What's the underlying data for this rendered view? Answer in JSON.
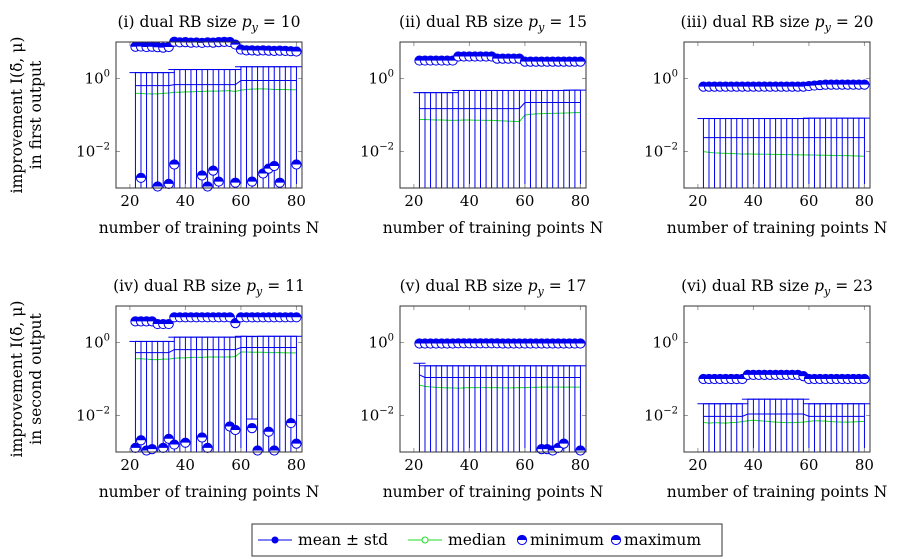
{
  "colors": {
    "mean": "#0000ee",
    "median": "#22dd22",
    "marker": "#0000ee",
    "axis": "#333333"
  },
  "legend": {
    "mean": "mean ± std",
    "median": "median",
    "minimum": "minimum",
    "maximum": "maximum",
    "placement": "bottom-center"
  },
  "ylabel_rows": [
    {
      "line1": "improvement I(δ̃, μ)",
      "line2": "in first output"
    },
    {
      "line1": "improvement I(δ̃, μ)",
      "line2": "in second output"
    }
  ],
  "chart_data": [
    {
      "type": "line",
      "title_prefix": "(i) dual RB size",
      "title_var": "p",
      "title_sub": "y",
      "title_value": "= 10",
      "xlabel": "number of training points N",
      "xlim": [
        15,
        82
      ],
      "ylim": [
        0.001,
        10
      ],
      "yscale": "log",
      "xticks": [
        20,
        40,
        60,
        80
      ],
      "yticks": [
        {
          "value": 1,
          "base": "10",
          "exp": "0"
        },
        {
          "value": 0.01,
          "base": "10",
          "exp": "−2"
        }
      ],
      "x": [
        22,
        24,
        26,
        28,
        30,
        32,
        34,
        36,
        38,
        40,
        42,
        44,
        46,
        48,
        50,
        52,
        54,
        56,
        58,
        60,
        62,
        64,
        66,
        68,
        70,
        72,
        74,
        76,
        78,
        80
      ],
      "mean": [
        0.64,
        0.64,
        0.64,
        0.64,
        0.64,
        0.64,
        0.64,
        0.68,
        0.68,
        0.68,
        0.68,
        0.68,
        0.68,
        0.68,
        0.68,
        0.68,
        0.68,
        0.68,
        0.68,
        0.88,
        0.88,
        0.88,
        0.88,
        0.88,
        0.88,
        0.88,
        0.88,
        0.88,
        0.88,
        0.88
      ],
      "std": [
        0.81,
        0.81,
        0.81,
        0.81,
        0.81,
        0.81,
        0.81,
        1.08,
        1.08,
        1.08,
        1.08,
        1.08,
        1.08,
        1.08,
        1.08,
        1.08,
        1.08,
        1.08,
        1.08,
        1.22,
        1.22,
        1.22,
        1.22,
        1.22,
        1.22,
        1.22,
        1.22,
        1.22,
        1.22,
        1.22
      ],
      "median": [
        0.39,
        0.39,
        0.38,
        0.38,
        0.38,
        0.39,
        0.4,
        0.42,
        0.42,
        0.43,
        0.43,
        0.44,
        0.44,
        0.45,
        0.45,
        0.45,
        0.46,
        0.46,
        0.44,
        0.48,
        0.5,
        0.51,
        0.52,
        0.52,
        0.51,
        0.5,
        0.5,
        0.5,
        0.49,
        0.49
      ],
      "maximum": [
        7.4,
        7.5,
        7.3,
        7.4,
        7.2,
        7.0,
        7.3,
        10.2,
        9.8,
        9.9,
        9.6,
        9.7,
        9.5,
        9.8,
        9.6,
        9.9,
        10.1,
        10.0,
        8.5,
        6.2,
        5.9,
        5.9,
        5.8,
        5.9,
        5.8,
        5.7,
        5.8,
        5.7,
        5.6,
        5.5
      ],
      "minimum": [
        null,
        0.0019,
        null,
        null,
        0.0011,
        null,
        0.0013,
        0.0044,
        null,
        null,
        null,
        null,
        0.0022,
        0.0011,
        0.003,
        0.0015,
        null,
        null,
        0.0014,
        null,
        null,
        0.0015,
        null,
        0.0025,
        0.0034,
        0.004,
        0.0014,
        null,
        null,
        0.0044
      ]
    },
    {
      "type": "line",
      "title_prefix": "(ii) dual RB size",
      "title_var": "p",
      "title_sub": "y",
      "title_value": "= 15",
      "xlabel": "number of training points N",
      "xlim": [
        15,
        82
      ],
      "ylim": [
        0.001,
        10
      ],
      "yscale": "log",
      "xticks": [
        20,
        40,
        60,
        80
      ],
      "yticks": [
        {
          "value": 1,
          "base": "10",
          "exp": "0"
        },
        {
          "value": 0.01,
          "base": "10",
          "exp": "−2"
        }
      ],
      "x": [
        22,
        24,
        26,
        28,
        30,
        32,
        34,
        36,
        38,
        40,
        42,
        44,
        46,
        48,
        50,
        52,
        54,
        56,
        58,
        60,
        62,
        64,
        66,
        68,
        70,
        72,
        74,
        76,
        78,
        80
      ],
      "mean": [
        0.15,
        0.15,
        0.15,
        0.15,
        0.15,
        0.15,
        0.15,
        0.15,
        0.15,
        0.15,
        0.15,
        0.15,
        0.15,
        0.15,
        0.15,
        0.15,
        0.15,
        0.15,
        0.15,
        0.22,
        0.22,
        0.22,
        0.22,
        0.22,
        0.22,
        0.22,
        0.22,
        0.22,
        0.22,
        0.22
      ],
      "std": [
        0.26,
        0.26,
        0.26,
        0.26,
        0.26,
        0.26,
        0.26,
        0.32,
        0.32,
        0.32,
        0.32,
        0.32,
        0.32,
        0.32,
        0.32,
        0.32,
        0.32,
        0.32,
        0.32,
        0.25,
        0.25,
        0.25,
        0.25,
        0.25,
        0.25,
        0.25,
        0.25,
        0.26,
        0.26,
        0.26
      ],
      "median": [
        0.075,
        0.075,
        0.074,
        0.073,
        0.073,
        0.072,
        0.071,
        0.072,
        0.073,
        0.073,
        0.072,
        0.072,
        0.071,
        0.071,
        0.07,
        0.069,
        0.068,
        0.067,
        0.066,
        0.1,
        0.104,
        0.107,
        0.109,
        0.11,
        0.111,
        0.112,
        0.113,
        0.114,
        0.116,
        0.117
      ],
      "maximum": [
        3.1,
        3.1,
        3.1,
        3.1,
        3.1,
        3.1,
        3.1,
        4.0,
        4.0,
        4.0,
        4.0,
        4.0,
        4.0,
        4.0,
        3.5,
        3.5,
        3.5,
        3.5,
        3.5,
        2.9,
        2.9,
        2.9,
        2.9,
        2.9,
        2.9,
        2.9,
        2.9,
        2.9,
        2.9,
        2.9
      ],
      "minimum": []
    },
    {
      "type": "line",
      "title_prefix": "(iii) dual RB size",
      "title_var": "p",
      "title_sub": "y",
      "title_value": "= 20",
      "xlabel": "number of training points N",
      "xlim": [
        15,
        82
      ],
      "ylim": [
        0.001,
        10
      ],
      "yscale": "log",
      "xticks": [
        20,
        40,
        60,
        80
      ],
      "yticks": [
        {
          "value": 1,
          "base": "10",
          "exp": "0"
        },
        {
          "value": 0.01,
          "base": "10",
          "exp": "−2"
        }
      ],
      "x": [
        22,
        24,
        26,
        28,
        30,
        32,
        34,
        36,
        38,
        40,
        42,
        44,
        46,
        48,
        50,
        52,
        54,
        56,
        58,
        60,
        62,
        64,
        66,
        68,
        70,
        72,
        74,
        76,
        78,
        80
      ],
      "mean": [
        0.024,
        0.024,
        0.024,
        0.024,
        0.024,
        0.024,
        0.024,
        0.024,
        0.024,
        0.024,
        0.024,
        0.024,
        0.024,
        0.024,
        0.024,
        0.024,
        0.024,
        0.024,
        0.024,
        0.024,
        0.024,
        0.024,
        0.024,
        0.024,
        0.024,
        0.024,
        0.024,
        0.024,
        0.024,
        0.024
      ],
      "std": [
        0.056,
        0.056,
        0.056,
        0.056,
        0.056,
        0.056,
        0.056,
        0.056,
        0.056,
        0.056,
        0.056,
        0.056,
        0.056,
        0.056,
        0.056,
        0.056,
        0.056,
        0.056,
        0.056,
        0.058,
        0.058,
        0.058,
        0.058,
        0.058,
        0.058,
        0.058,
        0.058,
        0.058,
        0.058,
        0.058
      ],
      "median": [
        0.0099,
        0.0095,
        0.0092,
        0.009,
        0.0089,
        0.0088,
        0.0087,
        0.0085,
        0.0086,
        0.0085,
        0.0085,
        0.0084,
        0.0084,
        0.0083,
        0.0083,
        0.0082,
        0.0082,
        0.0081,
        0.0081,
        0.008,
        0.008,
        0.0079,
        0.0079,
        0.0078,
        0.0078,
        0.0077,
        0.0077,
        0.0076,
        0.0075,
        0.0074
      ],
      "maximum": [
        0.6,
        0.6,
        0.6,
        0.6,
        0.6,
        0.6,
        0.6,
        0.6,
        0.6,
        0.6,
        0.6,
        0.6,
        0.6,
        0.6,
        0.6,
        0.6,
        0.6,
        0.6,
        0.6,
        0.62,
        0.64,
        0.66,
        0.68,
        0.68,
        0.68,
        0.68,
        0.68,
        0.68,
        0.68,
        0.68
      ],
      "minimum": []
    },
    {
      "type": "line",
      "title_prefix": "(iv) dual RB size",
      "title_var": "p",
      "title_sub": "y",
      "title_value": "= 11",
      "xlabel": "number of training points N",
      "xlim": [
        15,
        82
      ],
      "ylim": [
        0.001,
        10
      ],
      "yscale": "log",
      "xticks": [
        20,
        40,
        60,
        80
      ],
      "yticks": [
        {
          "value": 1,
          "base": "10",
          "exp": "0"
        },
        {
          "value": 0.01,
          "base": "10",
          "exp": "−2"
        }
      ],
      "x": [
        22,
        24,
        26,
        28,
        30,
        32,
        34,
        36,
        38,
        40,
        42,
        44,
        46,
        48,
        50,
        52,
        54,
        56,
        58,
        60,
        62,
        64,
        66,
        68,
        70,
        72,
        74,
        76,
        78,
        80
      ],
      "mean": [
        0.53,
        0.53,
        0.53,
        0.53,
        0.53,
        0.53,
        0.53,
        0.64,
        0.64,
        0.64,
        0.64,
        0.64,
        0.64,
        0.64,
        0.64,
        0.64,
        0.64,
        0.64,
        0.64,
        0.73,
        0.73,
        0.73,
        0.73,
        0.73,
        0.73,
        0.73,
        0.73,
        0.73,
        0.73,
        0.73
      ],
      "std": [
        0.54,
        0.54,
        0.54,
        0.54,
        0.54,
        0.54,
        0.54,
        0.76,
        0.76,
        0.76,
        0.76,
        0.76,
        0.76,
        0.76,
        0.76,
        0.76,
        0.76,
        0.76,
        0.76,
        0.75,
        0.75,
        0.722,
        0.75,
        0.75,
        0.75,
        0.75,
        0.75,
        0.75,
        0.75,
        0.75
      ],
      "median": [
        0.36,
        0.36,
        0.35,
        0.34,
        0.34,
        0.35,
        0.35,
        0.37,
        0.38,
        0.38,
        0.39,
        0.39,
        0.39,
        0.4,
        0.4,
        0.4,
        0.4,
        0.4,
        0.41,
        0.55,
        0.55,
        0.54,
        0.54,
        0.54,
        0.53,
        0.53,
        0.53,
        0.52,
        0.52,
        0.52
      ],
      "maximum": [
        3.8,
        3.8,
        3.8,
        3.8,
        3.2,
        3.2,
        3.2,
        4.9,
        4.9,
        4.9,
        4.9,
        4.9,
        4.9,
        4.9,
        4.9,
        4.9,
        4.9,
        4.9,
        3.4,
        4.9,
        4.9,
        4.9,
        4.9,
        4.9,
        4.9,
        4.9,
        4.9,
        4.9,
        4.9,
        4.9
      ],
      "minimum": [
        0.0013,
        0.0021,
        0.0011,
        0.0012,
        null,
        0.0013,
        0.0023,
        0.0016,
        null,
        0.0018,
        null,
        null,
        0.0025,
        0.0013,
        null,
        null,
        null,
        0.005,
        0.004,
        null,
        null,
        0.0045,
        0.0011,
        null,
        0.0036,
        0.0011,
        null,
        null,
        0.0062,
        0.0017
      ]
    },
    {
      "type": "line",
      "title_prefix": "(v) dual RB size",
      "title_var": "p",
      "title_sub": "y",
      "title_value": "= 17",
      "xlabel": "number of training points N",
      "xlim": [
        15,
        82
      ],
      "ylim": [
        0.001,
        10
      ],
      "yscale": "log",
      "xticks": [
        20,
        40,
        60,
        80
      ],
      "yticks": [
        {
          "value": 1,
          "base": "10",
          "exp": "0"
        },
        {
          "value": 0.01,
          "base": "10",
          "exp": "−2"
        }
      ],
      "x": [
        22,
        24,
        26,
        28,
        30,
        32,
        34,
        36,
        38,
        40,
        42,
        44,
        46,
        48,
        50,
        52,
        54,
        56,
        58,
        60,
        62,
        64,
        66,
        68,
        70,
        72,
        74,
        76,
        78,
        80
      ],
      "mean": [
        0.13,
        0.11,
        0.11,
        0.11,
        0.11,
        0.11,
        0.11,
        0.11,
        0.11,
        0.11,
        0.11,
        0.11,
        0.11,
        0.11,
        0.11,
        0.11,
        0.11,
        0.11,
        0.11,
        0.11,
        0.11,
        0.11,
        0.11,
        0.11,
        0.11,
        0.11,
        0.11,
        0.11,
        0.11,
        0.11
      ],
      "std": [
        0.14,
        0.12,
        0.12,
        0.12,
        0.12,
        0.12,
        0.12,
        0.12,
        0.12,
        0.12,
        0.12,
        0.12,
        0.12,
        0.12,
        0.12,
        0.12,
        0.12,
        0.12,
        0.12,
        0.12,
        0.12,
        0.12,
        0.12,
        0.12,
        0.12,
        0.12,
        0.12,
        0.12,
        0.12,
        0.12
      ],
      "median": [
        0.068,
        0.063,
        0.061,
        0.059,
        0.058,
        0.057,
        0.057,
        0.056,
        0.057,
        0.058,
        0.058,
        0.058,
        0.058,
        0.058,
        0.058,
        0.057,
        0.057,
        0.057,
        0.058,
        0.058,
        0.059,
        0.059,
        0.06,
        0.06,
        0.06,
        0.06,
        0.06,
        0.06,
        0.06,
        0.06
      ],
      "maximum": [
        0.94,
        0.94,
        0.94,
        0.94,
        0.94,
        0.94,
        0.94,
        0.95,
        0.95,
        0.95,
        0.95,
        0.95,
        0.95,
        0.95,
        0.95,
        0.94,
        0.94,
        0.94,
        0.94,
        0.94,
        0.94,
        0.94,
        0.94,
        0.94,
        0.94,
        0.94,
        0.94,
        0.94,
        0.94,
        0.94
      ],
      "minimum": [
        null,
        null,
        null,
        null,
        null,
        null,
        null,
        null,
        null,
        null,
        null,
        null,
        null,
        null,
        null,
        null,
        null,
        null,
        null,
        null,
        null,
        null,
        0.0012,
        0.0012,
        0.0011,
        0.0013,
        0.0017,
        null,
        null,
        0.0011
      ]
    },
    {
      "type": "line",
      "title_prefix": "(vi) dual RB size",
      "title_var": "p",
      "title_sub": "y",
      "title_value": "= 23",
      "xlabel": "number of training points N",
      "xlim": [
        15,
        82
      ],
      "ylim": [
        0.001,
        10
      ],
      "yscale": "log",
      "xticks": [
        20,
        40,
        60,
        80
      ],
      "yticks": [
        {
          "value": 1,
          "base": "10",
          "exp": "0"
        },
        {
          "value": 0.01,
          "base": "10",
          "exp": "−2"
        }
      ],
      "x": [
        22,
        24,
        26,
        28,
        30,
        32,
        34,
        36,
        38,
        40,
        42,
        44,
        46,
        48,
        50,
        52,
        54,
        56,
        58,
        60,
        62,
        64,
        66,
        68,
        70,
        72,
        74,
        76,
        78,
        80
      ],
      "mean": [
        0.0095,
        0.0095,
        0.0095,
        0.0095,
        0.0095,
        0.0095,
        0.0095,
        0.0095,
        0.011,
        0.011,
        0.011,
        0.011,
        0.011,
        0.011,
        0.011,
        0.011,
        0.011,
        0.011,
        0.011,
        0.0095,
        0.0095,
        0.0095,
        0.0095,
        0.0095,
        0.0095,
        0.0095,
        0.0095,
        0.0095,
        0.0095,
        0.0095
      ],
      "std": [
        0.0115,
        0.0115,
        0.0115,
        0.0115,
        0.0115,
        0.0115,
        0.0115,
        0.0115,
        0.017,
        0.017,
        0.017,
        0.017,
        0.017,
        0.017,
        0.017,
        0.017,
        0.017,
        0.017,
        0.017,
        0.0115,
        0.0115,
        0.0115,
        0.0115,
        0.0115,
        0.0115,
        0.0115,
        0.0115,
        0.0115,
        0.0115,
        0.0115
      ],
      "median": [
        0.0065,
        0.0062,
        0.0064,
        0.0063,
        0.0062,
        0.0064,
        0.0065,
        0.0068,
        0.0072,
        0.0074,
        0.0072,
        0.007,
        0.0068,
        0.0066,
        0.0065,
        0.0064,
        0.0064,
        0.0065,
        0.0066,
        0.0069,
        0.0072,
        0.0071,
        0.007,
        0.0068,
        0.0067,
        0.0066,
        0.0066,
        0.0067,
        0.0068,
        0.0069
      ],
      "maximum": [
        0.1,
        0.1,
        0.1,
        0.1,
        0.1,
        0.1,
        0.1,
        0.1,
        0.13,
        0.13,
        0.13,
        0.13,
        0.13,
        0.13,
        0.13,
        0.13,
        0.13,
        0.13,
        0.12,
        0.1,
        0.1,
        0.1,
        0.1,
        0.1,
        0.1,
        0.1,
        0.1,
        0.1,
        0.1,
        0.1
      ],
      "minimum": []
    }
  ]
}
